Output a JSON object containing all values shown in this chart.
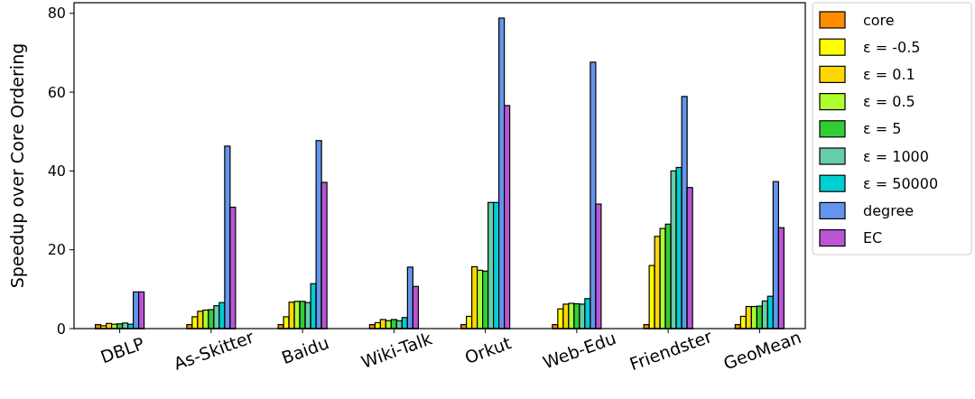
{
  "chart_data": {
    "type": "bar",
    "ylabel": "Speedup over Core Ordering",
    "categories": [
      "DBLP",
      "As-Skitter",
      "Baidu",
      "Wiki-Talk",
      "Orkut",
      "Web-Edu",
      "Friendster",
      "GeoMean"
    ],
    "series": [
      {
        "name": "core",
        "color": "#ff8c00",
        "values": [
          1.0,
          1.0,
          1.0,
          1.0,
          1.0,
          1.0,
          1.0,
          1.0
        ]
      },
      {
        "name": "ε = -0.5",
        "color": "#ffff00",
        "values": [
          0.7,
          3.0,
          3.0,
          1.5,
          3.1,
          5.0,
          16.0,
          3.1
        ]
      },
      {
        "name": "ε = 0.1",
        "color": "#ffd700",
        "values": [
          1.3,
          4.4,
          6.7,
          2.3,
          15.7,
          6.2,
          23.4,
          5.6
        ]
      },
      {
        "name": "ε = 0.5",
        "color": "#adff2f",
        "values": [
          1.1,
          4.7,
          6.9,
          2.0,
          14.8,
          6.4,
          25.4,
          5.6
        ]
      },
      {
        "name": "ε = 5",
        "color": "#32cd32",
        "values": [
          1.2,
          4.8,
          6.9,
          2.3,
          14.6,
          6.3,
          26.5,
          5.7
        ]
      },
      {
        "name": "ε = 1000",
        "color": "#66cdaa",
        "values": [
          1.4,
          5.8,
          6.6,
          2.0,
          32.0,
          6.2,
          40.0,
          7.0
        ]
      },
      {
        "name": "ε = 50000",
        "color": "#00ced1",
        "values": [
          1.1,
          6.6,
          11.4,
          2.8,
          32.0,
          7.6,
          40.9,
          8.2
        ]
      },
      {
        "name": "degree",
        "color": "#6495ed",
        "values": [
          9.3,
          46.3,
          47.7,
          15.6,
          78.8,
          67.6,
          58.9,
          37.3
        ]
      },
      {
        "name": "EC",
        "color": "#ba55d3",
        "values": [
          9.3,
          30.8,
          37.1,
          10.7,
          56.6,
          31.6,
          35.8,
          25.6
        ]
      }
    ],
    "ylim": [
      0,
      82.7
    ],
    "yticks": [
      0,
      20,
      40,
      60,
      80
    ],
    "grid": false,
    "legend": "right"
  }
}
